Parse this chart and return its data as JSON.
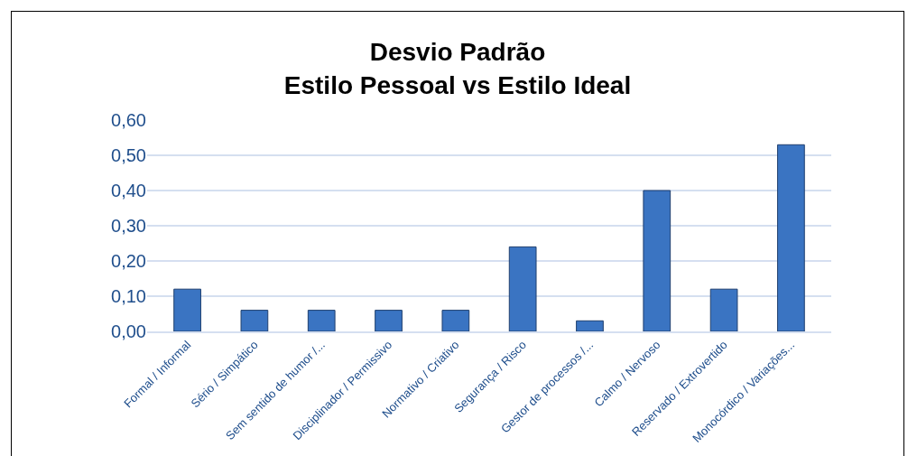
{
  "chart_data": {
    "type": "bar",
    "title": "Desvio Padrão\nEstilo Pessoal vs Estilo Ideal",
    "categories": [
      "Formal / Informal",
      "Sério / Simpático",
      "Sem sentido de humor /...",
      "Disciplinador / Permissivo",
      "Normativo / Criativo",
      "Segurança / Risco",
      "Gestor de processos /...",
      "Calmo / Nervoso",
      "Reservado / Extrovertido",
      "Monocórdico / Variações..."
    ],
    "values": [
      0.12,
      0.06,
      0.06,
      0.06,
      0.06,
      0.24,
      0.03,
      0.4,
      0.12,
      0.53
    ],
    "color": "#3a74c2",
    "ylim": [
      0,
      0.6
    ],
    "yticks": [
      {
        "value": 0,
        "label": "0,00"
      },
      {
        "value": 0.1,
        "label": "0,10"
      },
      {
        "value": 0.2,
        "label": "0,20"
      },
      {
        "value": 0.3,
        "label": "0,30"
      },
      {
        "value": 0.4,
        "label": "0,40"
      },
      {
        "value": 0.5,
        "label": "0,50"
      },
      {
        "value": 0.6,
        "label": "0,60"
      }
    ],
    "grid": "y"
  }
}
